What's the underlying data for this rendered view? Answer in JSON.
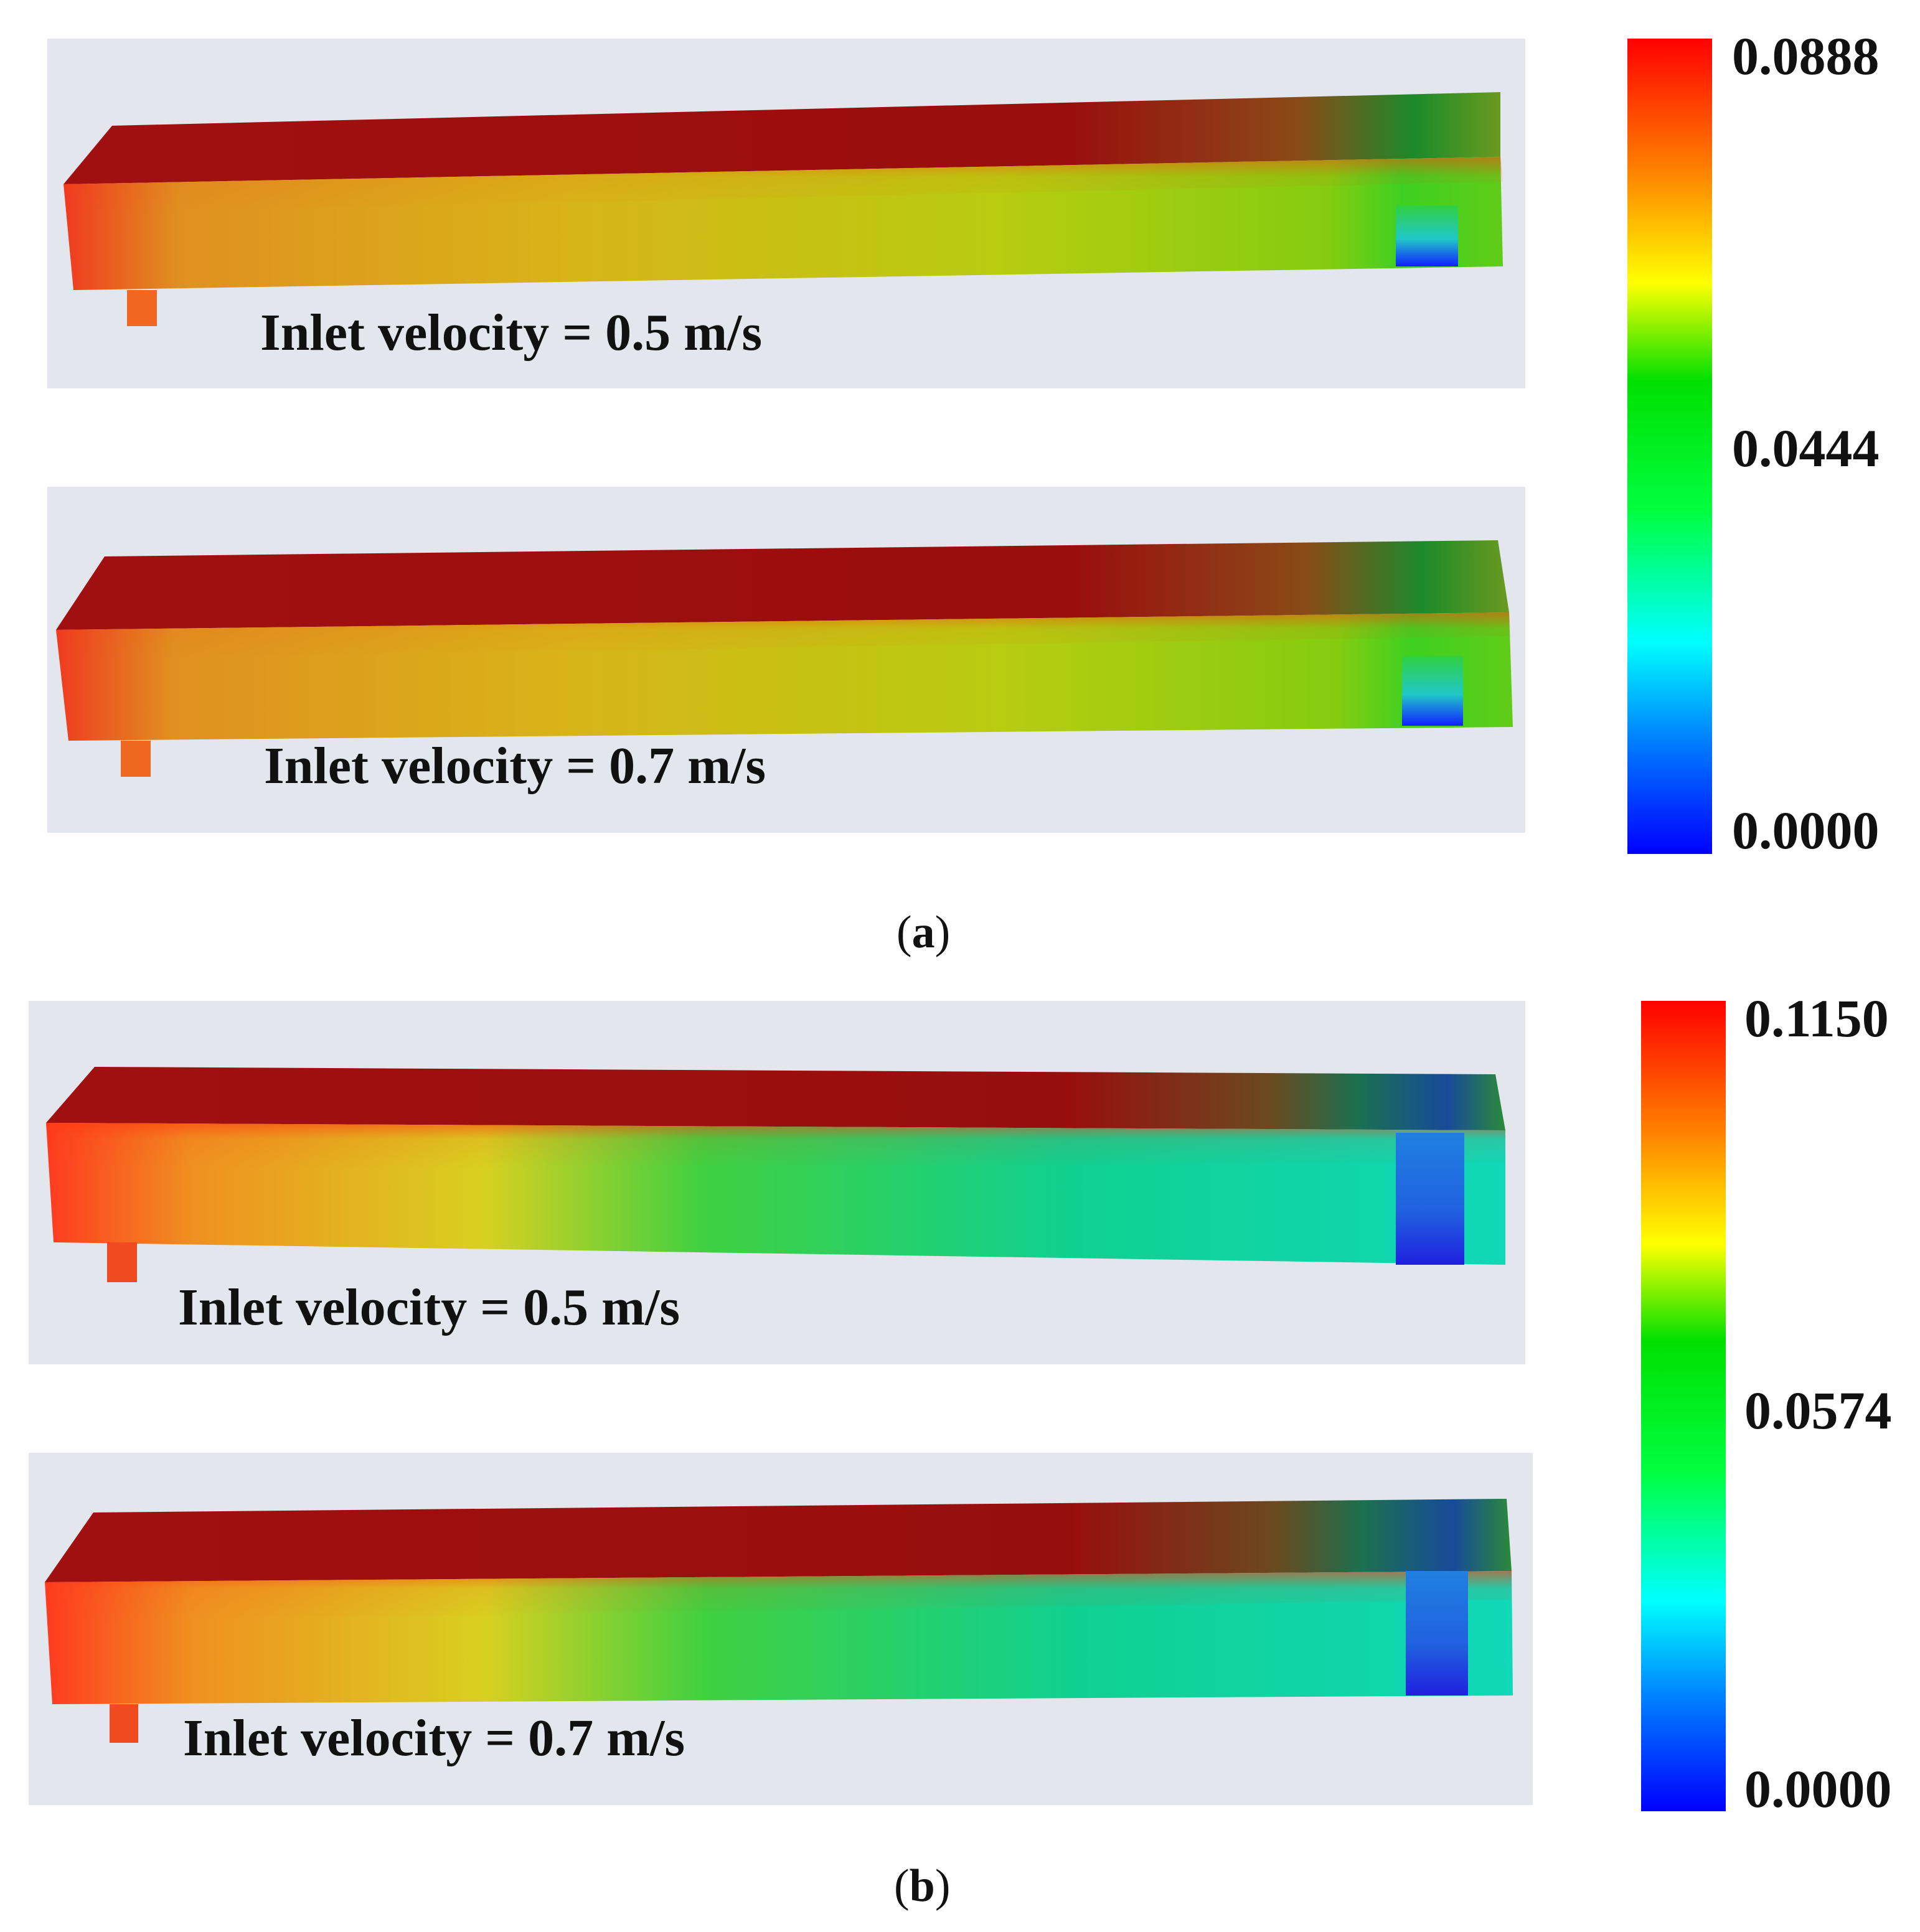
{
  "figure_a": {
    "caption_letter": "a",
    "panels": [
      {
        "label": "Inlet velocity = 0.5 m/s"
      },
      {
        "label": "Inlet velocity = 0.7 m/s"
      }
    ],
    "colorbar": {
      "max": "0.0888",
      "mid": "0.0444",
      "min": "0.0000"
    }
  },
  "figure_b": {
    "caption_letter": "b",
    "panels": [
      {
        "label": "Inlet velocity = 0.5 m/s"
      },
      {
        "label": "Inlet velocity = 0.7 m/s"
      }
    ],
    "colorbar": {
      "max": "0.1150",
      "mid": "0.0574",
      "min": "0.0000"
    }
  },
  "colormap": [
    "#0000ff",
    "#0080ff",
    "#00ffff",
    "#00ff40",
    "#00e000",
    "#ffff00",
    "#ff8000",
    "#ff0000"
  ]
}
